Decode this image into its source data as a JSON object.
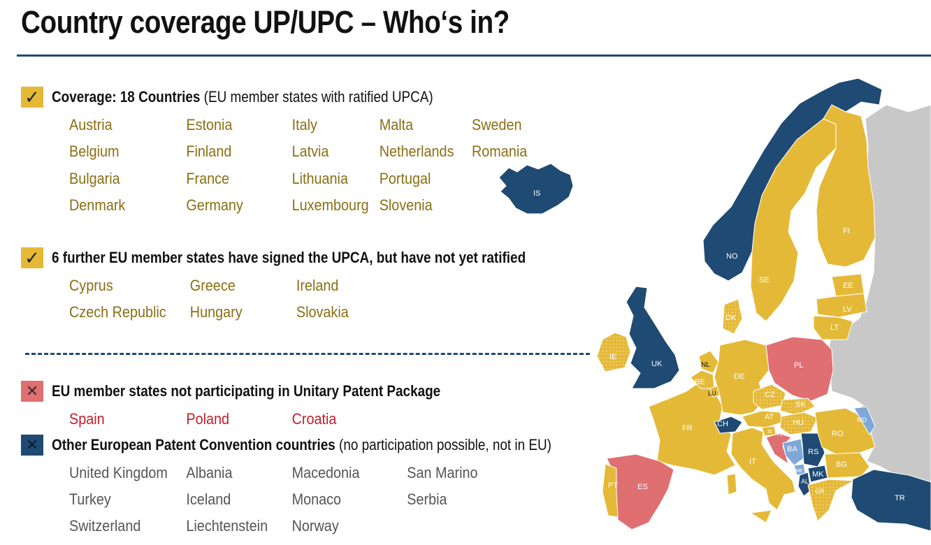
{
  "title": "Country coverage UP/UPC – Who‘s in?",
  "colors": {
    "covered": "#e5b938",
    "not_participating": "#e06f72",
    "epc_non_eu": "#1f4a73",
    "signed_not_ratified": "#e5b938",
    "other": "#c8c8c8",
    "light_blue": "#7fa8d8"
  },
  "coverage": {
    "heading_bold": "Coverage: 18 Countries",
    "heading_rest": " (EU member states with ratified UPCA)",
    "countries": [
      "Austria",
      "Estonia",
      "Italy",
      "Malta",
      "Sweden",
      "Belgium",
      "Finland",
      "Latvia",
      "Netherlands",
      "Romania",
      "Bulgaria",
      "France",
      "Lithuania",
      "Portugal",
      "Denmark",
      "Germany",
      "Luxembourg",
      "Slovenia"
    ]
  },
  "signed": {
    "heading": "6 further EU member states have signed the UPCA, but have not yet ratified",
    "countries": [
      "Cyprus",
      "Greece",
      "Ireland",
      "Czech Republic",
      "Hungary",
      "Slovakia"
    ]
  },
  "not_participating": {
    "heading": "EU member states not participating in Unitary Patent Package",
    "countries": [
      "Spain",
      "Poland",
      "Croatia"
    ]
  },
  "epc": {
    "heading_bold": "Other European Patent Convention countries",
    "heading_rest": " (no participation possible, not in EU)",
    "countries": [
      "United Kingdom",
      "Albania",
      "Macedonia",
      "San Marino",
      "Turkey",
      "Iceland",
      "Monaco",
      "Serbia",
      "Switzerland",
      "Liechtenstein",
      "Norway"
    ]
  },
  "map_labels": {
    "IS": "IS",
    "NO": "NO",
    "SE": "SE",
    "FI": "FI",
    "EE": "EE",
    "LV": "LV",
    "LT": "LT",
    "DK": "DK",
    "IE": "IE",
    "UK": "UK",
    "NL": "NL",
    "BE": "BE",
    "LU": "LU",
    "DE": "DE",
    "PL": "PL",
    "CZ": "CZ",
    "SK": "SK",
    "FR": "FR",
    "CH": "CH",
    "AT": "AT",
    "HU": "HU",
    "SI": "SI",
    "HR": "HR",
    "RO": "RO",
    "MD": "MD",
    "BA": "BA",
    "RS": "RS",
    "ME": "ME",
    "IT": "IT",
    "BG": "BG",
    "MK": "MK",
    "AL": "AL",
    "GR": "GR",
    "PT": "PT",
    "ES": "ES",
    "TR": "TR"
  }
}
